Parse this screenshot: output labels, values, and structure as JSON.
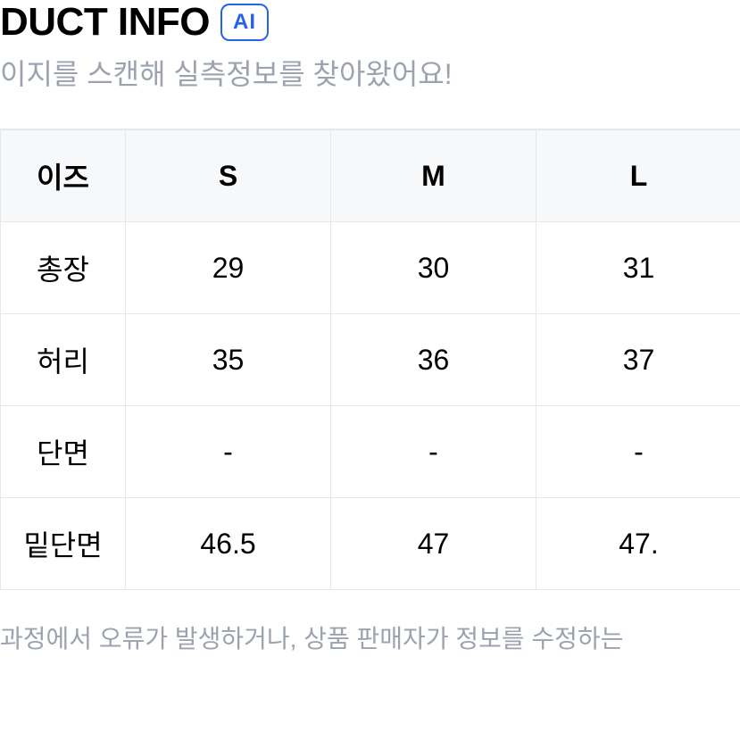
{
  "header": {
    "title": "DUCT INFO",
    "badge": "AI",
    "subtitle": "이지를 스캔해 실측정보를 찾아왔어요!"
  },
  "table": {
    "columns": [
      "이즈",
      "S",
      "M",
      "L"
    ],
    "rows": [
      {
        "label": "총장",
        "values": [
          "29",
          "30",
          "31"
        ]
      },
      {
        "label": "허리",
        "values": [
          "35",
          "36",
          "37"
        ]
      },
      {
        "label": "단면",
        "values": [
          "-",
          "-",
          "-"
        ]
      },
      {
        "label": "밑단면",
        "values": [
          "46.5",
          "47",
          "47."
        ]
      }
    ]
  },
  "footer": {
    "note": "과정에서 오류가 발생하거나, 상품 판매자가 정보를 수정하는"
  },
  "styles": {
    "border_color": "#e5e7eb",
    "header_bg": "#f7f8fa",
    "text_color": "#000000",
    "subtitle_color": "#9ca3af",
    "badge_color": "#2563eb",
    "background": "#ffffff"
  }
}
